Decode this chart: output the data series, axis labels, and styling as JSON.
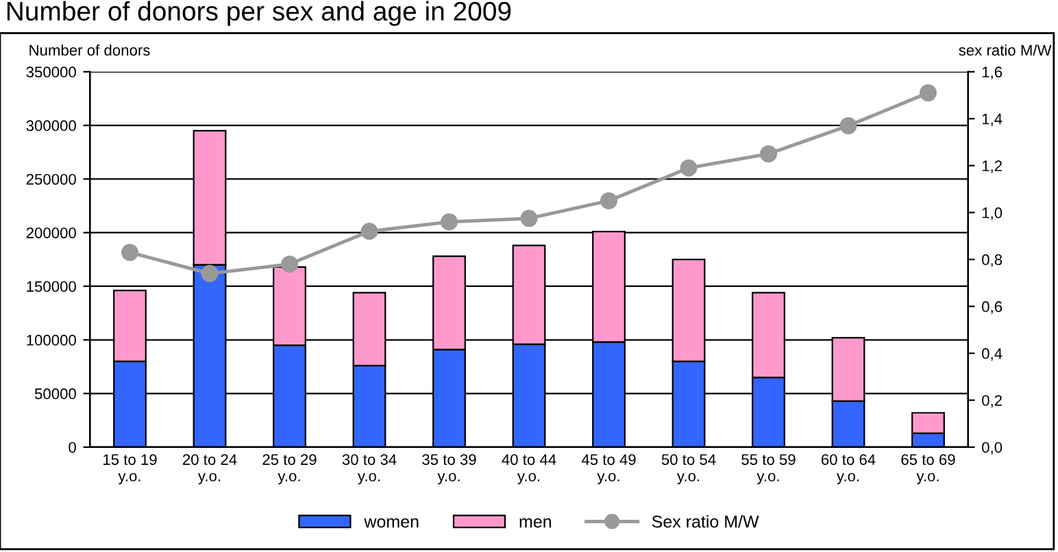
{
  "chart_data": {
    "type": "bar",
    "title": "Number of donors per sex and age in 2009",
    "ylabel": "Number of donors",
    "y2label": "sex ratio M/W",
    "categories": [
      "15 to 19\ny.o.",
      "20 to 24\ny.o.",
      "25 to 29\ny.o.",
      "30 to 34\ny.o.",
      "35 to 39\ny.o.",
      "40 to 44\ny.o.",
      "45 to 49\ny.o.",
      "50 to 54\ny.o.",
      "55 to 59\ny.o.",
      "60 to 64\ny.o.",
      "65 to 69\ny.o."
    ],
    "stacked": true,
    "series": [
      {
        "name": "women",
        "color": "#3366ff",
        "values": [
          80000,
          170000,
          95000,
          76000,
          91000,
          96000,
          98000,
          80000,
          65000,
          43000,
          13000
        ]
      },
      {
        "name": "men",
        "color": "#ff99cc",
        "values": [
          66000,
          125000,
          73000,
          68000,
          87000,
          92000,
          103000,
          95000,
          79000,
          59000,
          19000
        ]
      },
      {
        "name": "Sex ratio M/W",
        "type": "line",
        "axis": "y2",
        "color": "#999999",
        "marker": "circle",
        "values": [
          0.83,
          0.74,
          0.78,
          0.92,
          0.96,
          0.975,
          1.05,
          1.19,
          1.25,
          1.37,
          1.51
        ]
      }
    ],
    "ylim": [
      0,
      350000
    ],
    "yticks": [
      0,
      50000,
      100000,
      150000,
      200000,
      250000,
      300000,
      350000
    ],
    "y2lim": [
      0,
      1.6
    ],
    "y2ticks": [
      {
        "value": 0,
        "label": "0,0"
      },
      {
        "value": 0.2,
        "label": "0,2"
      },
      {
        "value": 0.4,
        "label": "0,4"
      },
      {
        "value": 0.6,
        "label": "0,6"
      },
      {
        "value": 0.8,
        "label": "0,8"
      },
      {
        "value": 1.0,
        "label": "1,0"
      },
      {
        "value": 1.2,
        "label": "1,2"
      },
      {
        "value": 1.4,
        "label": "1,4"
      },
      {
        "value": 1.6,
        "label": "1,6"
      }
    ],
    "grid": "y",
    "legend": "bottom"
  }
}
